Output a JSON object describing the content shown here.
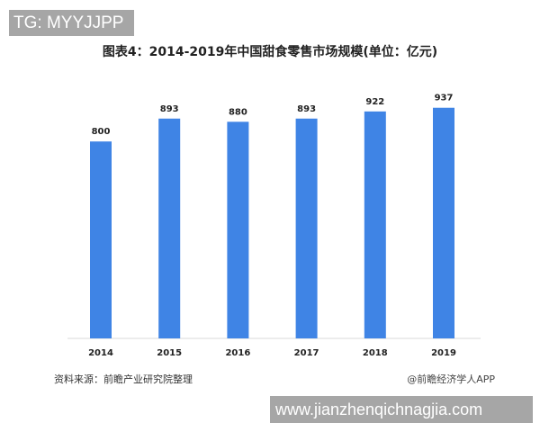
{
  "watermark_top": "TG: MYYJJPP",
  "watermark_bottom": "www.jianzhenqichnagjia.com",
  "source": "资料来源：前瞻产业研究院整理",
  "publisher": "@前瞻经济学人APP",
  "chart_data": {
    "type": "bar",
    "title": "图表4：2014-2019年中国甜食零售市场规模(单位：亿元)",
    "categories": [
      "2014",
      "2015",
      "2016",
      "2017",
      "2018",
      "2019"
    ],
    "values": [
      800,
      893,
      880,
      893,
      922,
      937
    ],
    "data_labels": [
      "800",
      "893",
      "880",
      "893",
      "922",
      "937"
    ],
    "xlabel": "",
    "ylabel": "",
    "ylim": [
      0,
      1000
    ],
    "grid": false,
    "bar_color": "#3f84e5"
  }
}
